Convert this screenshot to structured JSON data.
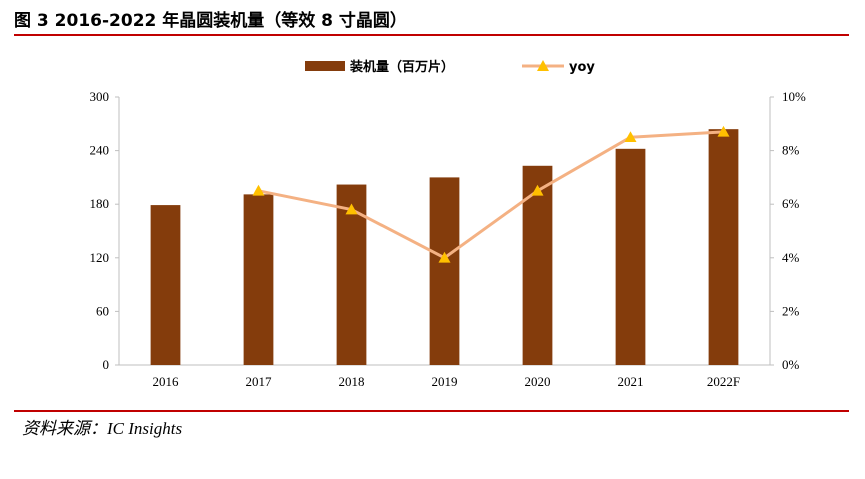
{
  "header": {
    "title": "图 3 2016-2022 年晶圆装机量（等效 8 寸晶圆）"
  },
  "footer": {
    "source": "资料来源：IC Insights"
  },
  "chart_data": {
    "type": "bar+line",
    "categories": [
      "2016",
      "2017",
      "2018",
      "2019",
      "2020",
      "2021",
      "2022F"
    ],
    "series": [
      {
        "name": "装机量（百万片）",
        "type": "bar",
        "axis": "left",
        "color": "#843c0c",
        "values": [
          179,
          191,
          202,
          210,
          223,
          242,
          264
        ]
      },
      {
        "name": "yoy",
        "type": "line",
        "axis": "right",
        "color": "#f4b183",
        "marker_color": "#ffc000",
        "values": [
          null,
          6.5,
          5.8,
          4.0,
          6.5,
          8.5,
          8.7
        ]
      }
    ],
    "y_left": {
      "min": 0,
      "max": 300,
      "ticks": [
        "0",
        "60",
        "120",
        "180",
        "240",
        "300"
      ]
    },
    "y_right": {
      "min": 0,
      "max": 10,
      "ticks": [
        "0%",
        "2%",
        "4%",
        "6%",
        "8%",
        "10%"
      ]
    },
    "legend_position": "top-center",
    "grid": false
  }
}
